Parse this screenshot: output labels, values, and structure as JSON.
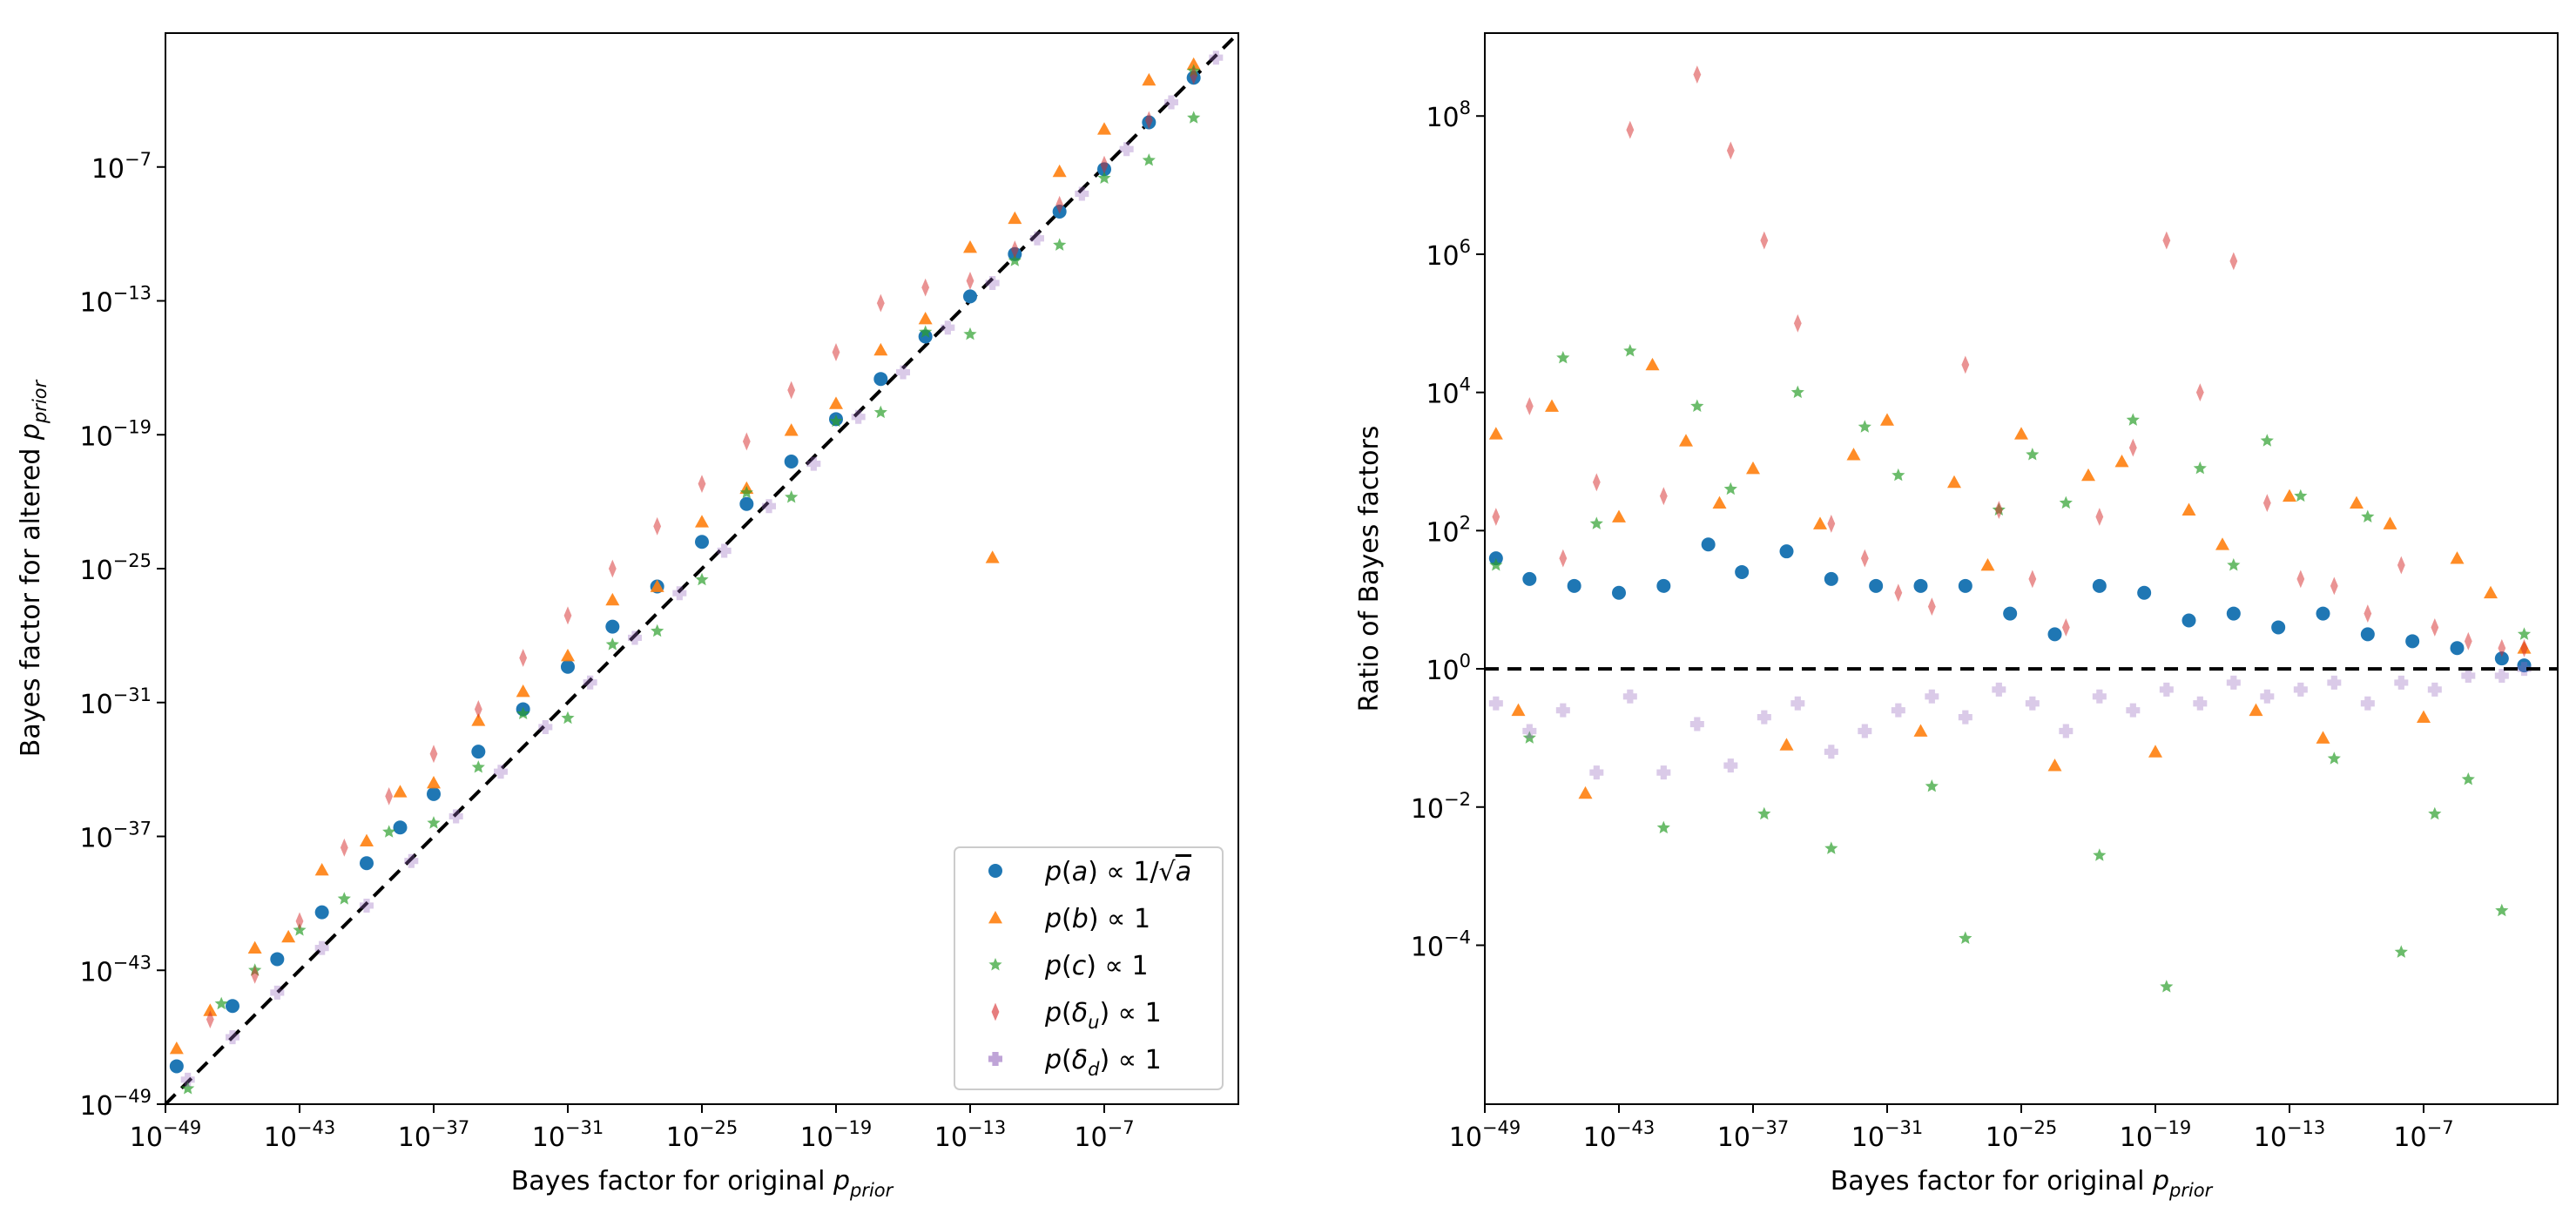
{
  "figure": {
    "colors": {
      "series_a": "#1f77b4",
      "series_b": "#ff7f0e",
      "series_c": "#2ca02c",
      "series_du": "#d62728",
      "series_dd": "#9467bd",
      "reference_line": "#000000"
    }
  },
  "chart_data": [
    {
      "type": "scatter",
      "scale": "log-log",
      "xlabel": "Bayes factor for original p_prior",
      "ylabel": "Bayes factor for altered p_prior",
      "xlim_log10": [
        -49,
        -1
      ],
      "ylim_log10": [
        -49,
        -1
      ],
      "xticks_log10": [
        -49,
        -43,
        -37,
        -31,
        -25,
        -19,
        -13,
        -7
      ],
      "yticks_log10": [
        -49,
        -43,
        -37,
        -31,
        -25,
        -19,
        -13,
        -7
      ],
      "reference_line": "y = x",
      "legend": {
        "location": "lower right",
        "entries": [
          {
            "key": "a",
            "label": "p(a) ∝ 1/√a",
            "marker": "circle"
          },
          {
            "key": "b",
            "label": "p(b) ∝ 1",
            "marker": "triangle"
          },
          {
            "key": "c",
            "label": "p(c) ∝ 1",
            "marker": "star"
          },
          {
            "key": "du",
            "label": "p(δu) ∝ 1",
            "marker": "thin-diamond"
          },
          {
            "key": "dd",
            "label": "p(δd) ∝ 1",
            "marker": "plus"
          }
        ]
      },
      "series": [
        {
          "name": "p(a) ∝ 1/√a",
          "marker": "circle",
          "x": [
            -48.5,
            -46,
            -44,
            -42,
            -40,
            -38.5,
            -37,
            -35,
            -33,
            -31,
            -29,
            -27,
            -25,
            -23,
            -21,
            -19,
            -17,
            -15,
            -13,
            -11,
            -9,
            -7,
            -5,
            -3
          ],
          "y": [
            -47.3,
            -44.6,
            -42.5,
            -40.4,
            -38.2,
            -36.6,
            -35.1,
            -33.2,
            -31.3,
            -29.4,
            -27.6,
            -25.8,
            -23.8,
            -22.1,
            -20.2,
            -18.3,
            -16.5,
            -14.6,
            -12.8,
            -10.9,
            -9.0,
            -7.1,
            -5.0,
            -3.0
          ]
        },
        {
          "name": "p(b) ∝ 1",
          "marker": "triangle",
          "x": [
            -48.5,
            -47,
            -45,
            -43.5,
            -42,
            -40,
            -38.5,
            -37,
            -35,
            -33,
            -31,
            -29,
            -27,
            -25,
            -23,
            -21,
            -19,
            -17,
            -15,
            -13,
            -11,
            -9,
            -7,
            -5,
            -3,
            -12
          ],
          "y": [
            -46.5,
            -44.8,
            -42.0,
            -41.5,
            -38.5,
            -37.2,
            -35.0,
            -34.6,
            -31.8,
            -30.5,
            -28.9,
            -26.4,
            -25.8,
            -22.9,
            -21.4,
            -18.8,
            -17.6,
            -15.2,
            -13.8,
            -10.6,
            -9.3,
            -7.2,
            -5.3,
            -3.1,
            -2.4,
            -24.5
          ]
        },
        {
          "name": "p(c) ∝ 1",
          "marker": "star",
          "x": [
            -48,
            -46.5,
            -45,
            -43,
            -41,
            -39,
            -37,
            -35,
            -33,
            -31,
            -29,
            -27,
            -25,
            -23,
            -21,
            -19,
            -17,
            -15,
            -13,
            -11,
            -9,
            -7,
            -5,
            -3,
            -3
          ],
          "y": [
            -48.3,
            -44.5,
            -43.0,
            -41.2,
            -39.8,
            -36.8,
            -36.4,
            -33.9,
            -31.5,
            -31.7,
            -28.4,
            -27.8,
            -25.5,
            -21.6,
            -21.8,
            -18.4,
            -18.0,
            -14.4,
            -14.5,
            -11.2,
            -10.5,
            -7.5,
            -6.7,
            -4.8,
            -2.7
          ]
        },
        {
          "name": "p(δu) ∝ 1",
          "marker": "thin-diamond",
          "x": [
            -47,
            -45,
            -43,
            -41,
            -39,
            -37,
            -35,
            -33,
            -31,
            -29,
            -27,
            -25,
            -23,
            -21,
            -19,
            -17,
            -15,
            -13,
            -11,
            -9,
            -7,
            -5,
            -3
          ],
          "y": [
            -45.2,
            -43.2,
            -40.8,
            -37.5,
            -35.2,
            -33.3,
            -31.3,
            -29.0,
            -27.1,
            -25.0,
            -23.1,
            -21.2,
            -19.3,
            -17.0,
            -15.3,
            -13.1,
            -12.4,
            -12.1,
            -10.7,
            -8.7,
            -6.9,
            -4.9,
            -2.9
          ]
        },
        {
          "name": "p(δd) ∝ 1",
          "marker": "plus",
          "x": [
            -48,
            -46,
            -44,
            -42,
            -40,
            -38,
            -36,
            -34,
            -32,
            -30,
            -28,
            -26,
            -24,
            -22,
            -20,
            -18,
            -16,
            -14,
            -12,
            -10,
            -8,
            -6,
            -4,
            -2
          ],
          "y": [
            -47.9,
            -46.0,
            -44.0,
            -42.0,
            -40.1,
            -38.1,
            -36.1,
            -34.1,
            -32.1,
            -30.1,
            -28.1,
            -26.1,
            -24.2,
            -22.2,
            -20.3,
            -18.2,
            -16.2,
            -14.2,
            -12.2,
            -10.2,
            -8.2,
            -6.2,
            -4.1,
            -2.1
          ]
        }
      ]
    },
    {
      "type": "scatter",
      "scale": "log-log",
      "xlabel": "Bayes factor for original p_prior",
      "ylabel": "Ratio of Bayes factors",
      "xlim_log10": [
        -49,
        -1
      ],
      "ylim_log10": [
        -6.3,
        9.2
      ],
      "xticks_log10": [
        -49,
        -43,
        -37,
        -31,
        -25,
        -19,
        -13,
        -7
      ],
      "yticks_log10": [
        -4,
        -2,
        0,
        2,
        4,
        6,
        8
      ],
      "reference_line": "y = 1",
      "series": [
        {
          "name": "p(a) ∝ 1/√a",
          "marker": "circle",
          "x": [
            -48.5,
            -47,
            -45,
            -43,
            -41,
            -39,
            -37.5,
            -35.5,
            -33.5,
            -31.5,
            -29.5,
            -27.5,
            -25.5,
            -23.5,
            -21.5,
            -19.5,
            -17.5,
            -15.5,
            -13.5,
            -11.5,
            -9.5,
            -7.5,
            -5.5,
            -3.5,
            -2.5
          ],
          "y": [
            1.6,
            1.3,
            1.2,
            1.1,
            1.2,
            1.8,
            1.4,
            1.7,
            1.3,
            1.2,
            1.2,
            1.2,
            0.8,
            0.5,
            1.2,
            1.1,
            0.7,
            0.8,
            0.6,
            0.8,
            0.5,
            0.4,
            0.3,
            0.15,
            0.05
          ]
        },
        {
          "name": "p(b) ∝ 1",
          "marker": "triangle",
          "x": [
            -48.5,
            -47.5,
            -46,
            -44.5,
            -43,
            -41.5,
            -40,
            -38.5,
            -37,
            -35.5,
            -34,
            -32.5,
            -31,
            -29.5,
            -28,
            -26.5,
            -25,
            -23.5,
            -22,
            -20.5,
            -19,
            -17.5,
            -16,
            -14.5,
            -13,
            -11.5,
            -10,
            -8.5,
            -7,
            -5.5,
            -4,
            -2.5
          ],
          "y": [
            3.4,
            -0.6,
            3.8,
            -1.8,
            2.2,
            4.4,
            3.3,
            2.4,
            2.9,
            -1.1,
            2.1,
            3.1,
            3.6,
            -0.9,
            2.7,
            1.5,
            3.4,
            -1.4,
            2.8,
            3.0,
            -1.2,
            2.3,
            1.8,
            -0.6,
            2.5,
            -1.0,
            2.4,
            2.1,
            -0.7,
            1.6,
            1.1,
            0.3
          ]
        },
        {
          "name": "p(c) ∝ 1",
          "marker": "star",
          "x": [
            -48.5,
            -47,
            -45.5,
            -44,
            -42.5,
            -41,
            -39.5,
            -38,
            -36.5,
            -35,
            -33.5,
            -32,
            -30.5,
            -29,
            -27.5,
            -26,
            -24.5,
            -23,
            -21.5,
            -20,
            -18.5,
            -17,
            -15.5,
            -14,
            -12.5,
            -11,
            -9.5,
            -8,
            -6.5,
            -5,
            -3.5,
            -2.5
          ],
          "y": [
            1.5,
            -1.0,
            4.5,
            2.1,
            4.6,
            -2.3,
            3.8,
            2.6,
            -2.1,
            4.0,
            -2.6,
            3.5,
            2.8,
            -1.7,
            -3.9,
            2.3,
            3.1,
            2.4,
            -2.7,
            3.6,
            -4.6,
            2.9,
            1.5,
            3.3,
            2.5,
            -1.3,
            2.2,
            -4.1,
            -2.1,
            -1.6,
            -3.5,
            0.5
          ]
        },
        {
          "name": "p(δu) ∝ 1",
          "marker": "thin-diamond",
          "x": [
            -48.5,
            -47,
            -45.5,
            -44,
            -42.5,
            -41,
            -39.5,
            -38,
            -36.5,
            -35,
            -33.5,
            -32,
            -30.5,
            -29,
            -27.5,
            -26,
            -24.5,
            -23,
            -21.5,
            -20,
            -18.5,
            -17,
            -15.5,
            -14,
            -12.5,
            -11,
            -9.5,
            -8,
            -6.5,
            -5,
            -3.5,
            -2.5
          ],
          "y": [
            2.2,
            3.8,
            1.6,
            2.7,
            7.8,
            2.5,
            8.6,
            7.5,
            6.2,
            5.0,
            2.1,
            1.6,
            1.1,
            0.9,
            4.4,
            2.3,
            1.3,
            0.6,
            2.2,
            3.2,
            6.2,
            4.0,
            5.9,
            2.4,
            1.3,
            1.2,
            0.8,
            1.5,
            0.6,
            0.4,
            0.3,
            0.3
          ]
        },
        {
          "name": "p(δd) ∝ 1",
          "marker": "plus",
          "x": [
            -48.5,
            -47,
            -45.5,
            -44,
            -42.5,
            -41,
            -39.5,
            -38,
            -36.5,
            -35,
            -33.5,
            -32,
            -30.5,
            -29,
            -27.5,
            -26,
            -24.5,
            -23,
            -21.5,
            -20,
            -18.5,
            -17,
            -15.5,
            -14,
            -12.5,
            -11,
            -9.5,
            -8,
            -6.5,
            -5,
            -3.5,
            -2.5
          ],
          "y": [
            -0.5,
            -0.9,
            -0.6,
            -1.5,
            -0.4,
            -1.5,
            -0.8,
            -1.4,
            -0.7,
            -0.5,
            -1.2,
            -0.9,
            -0.6,
            -0.4,
            -0.7,
            -0.3,
            -0.5,
            -0.9,
            -0.4,
            -0.6,
            -0.3,
            -0.5,
            -0.2,
            -0.4,
            -0.3,
            -0.2,
            -0.5,
            -0.2,
            -0.3,
            -0.1,
            -0.1,
            0.0
          ]
        }
      ]
    }
  ]
}
